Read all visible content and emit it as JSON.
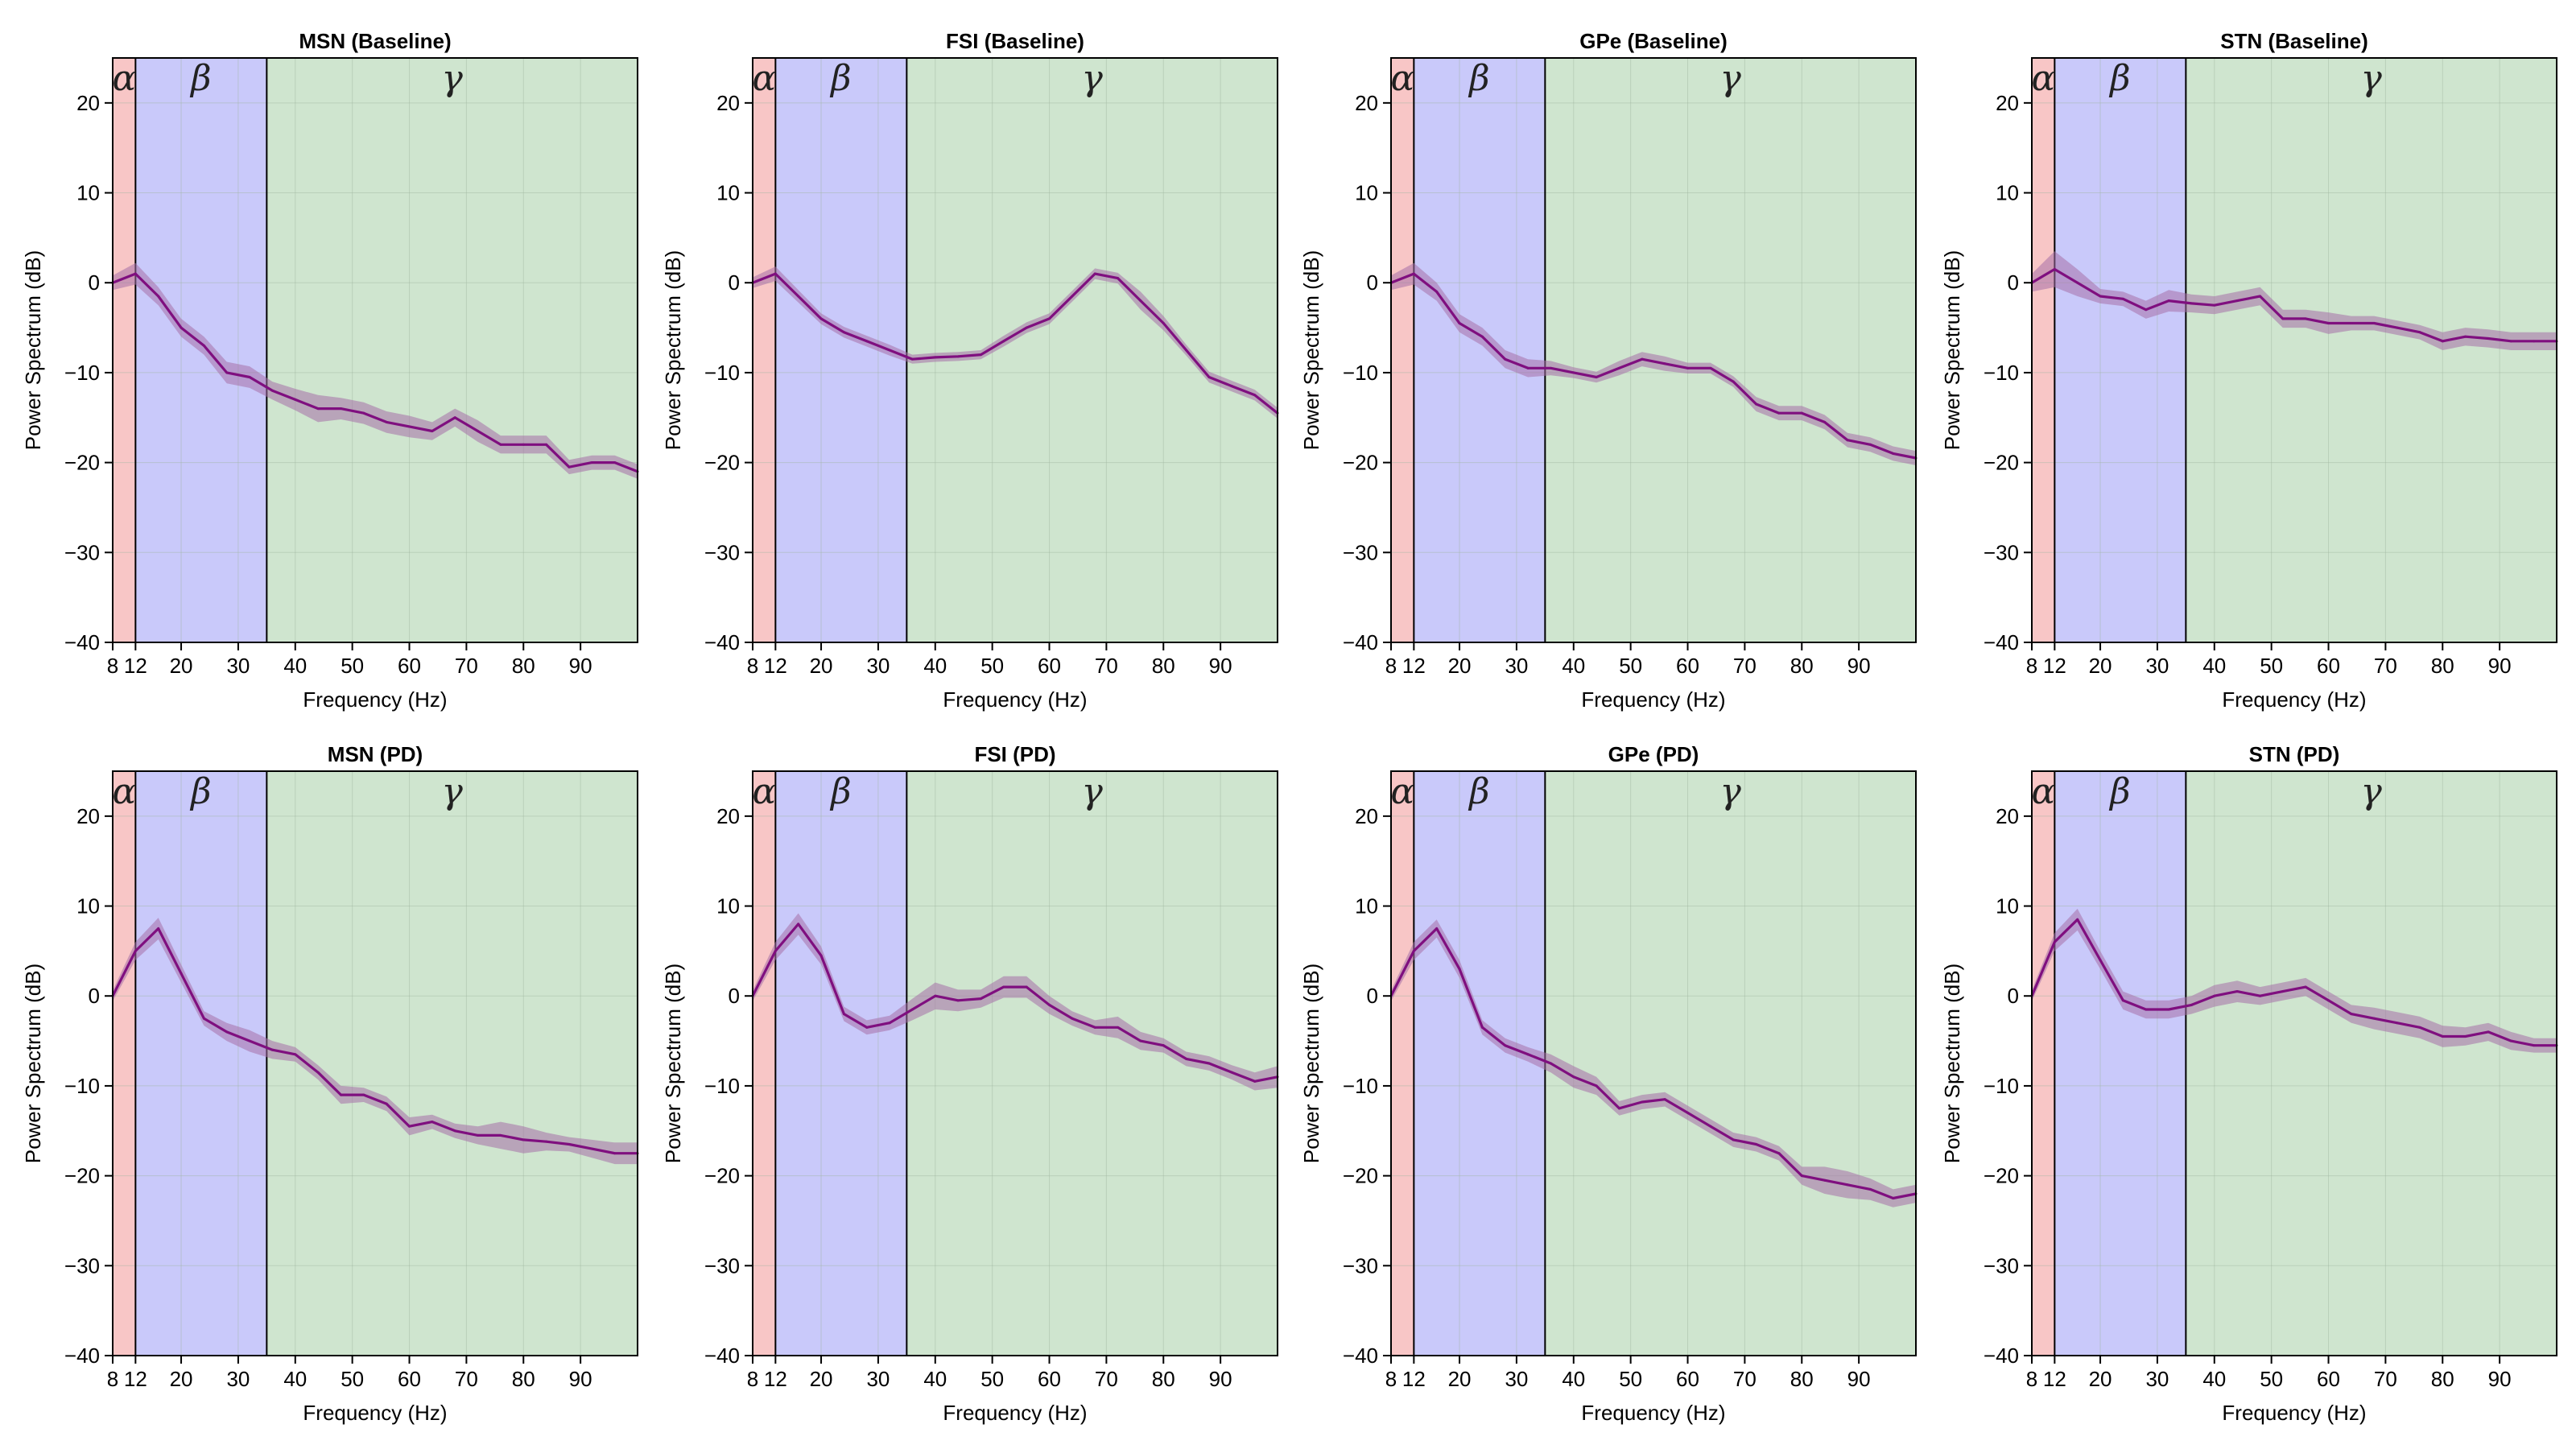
{
  "figure": {
    "xlabel": "Frequency (Hz)",
    "ylabel": "Power Spectrum (dB)",
    "band_labels": {
      "alpha": "α",
      "beta": "β",
      "gamma": "γ"
    },
    "colors": {
      "alpha_band": "#f8c6c6",
      "beta_band": "#c9c9fa",
      "gamma_band": "#cfe5cf",
      "line": "#7f0f7f",
      "ci": "#a56fa8",
      "grid": "#9fb59f",
      "axis": "#000000"
    }
  },
  "chart_data": [
    {
      "type": "line",
      "title": "MSN (Baseline)",
      "xlabel": "Frequency (Hz)",
      "ylabel": "Power Spectrum (dB)",
      "xlim": [
        8,
        100
      ],
      "ylim": [
        -40,
        25
      ],
      "xticks": [
        8,
        12,
        20,
        30,
        40,
        50,
        60,
        70,
        80,
        90
      ],
      "yticks": [
        -40,
        -30,
        -20,
        -10,
        0,
        10,
        20
      ],
      "bands": [
        {
          "name": "alpha",
          "from": 8,
          "to": 12
        },
        {
          "name": "beta",
          "from": 12,
          "to": 35
        },
        {
          "name": "gamma",
          "from": 35,
          "to": 100
        }
      ],
      "x": [
        8,
        12,
        16,
        20,
        24,
        28,
        32,
        36,
        40,
        44,
        48,
        52,
        56,
        60,
        64,
        68,
        72,
        76,
        80,
        84,
        88,
        92,
        96,
        100
      ],
      "values": [
        0,
        1,
        -1.5,
        -5,
        -7,
        -10,
        -10.5,
        -12,
        -13,
        -14,
        -14,
        -14.5,
        -15.5,
        -16,
        -16.5,
        -15,
        -16.5,
        -18,
        -18,
        -18,
        -20.5,
        -20,
        -20,
        -21
      ],
      "ci_halfwidth": [
        0.8,
        1.2,
        1.0,
        1.0,
        1.0,
        1.2,
        1.2,
        1.0,
        1.2,
        1.5,
        1.2,
        1.2,
        1.2,
        1.2,
        1.0,
        1.0,
        1.2,
        1.0,
        1.0,
        1.0,
        0.8,
        0.8,
        0.8,
        0.8
      ]
    },
    {
      "type": "line",
      "title": "FSI (Baseline)",
      "xlabel": "Frequency (Hz)",
      "ylabel": "Power Spectrum (dB)",
      "xlim": [
        8,
        100
      ],
      "ylim": [
        -40,
        25
      ],
      "xticks": [
        8,
        12,
        20,
        30,
        40,
        50,
        60,
        70,
        80,
        90
      ],
      "yticks": [
        -40,
        -30,
        -20,
        -10,
        0,
        10,
        20
      ],
      "bands": [
        {
          "name": "alpha",
          "from": 8,
          "to": 12
        },
        {
          "name": "beta",
          "from": 12,
          "to": 35
        },
        {
          "name": "gamma",
          "from": 35,
          "to": 100
        }
      ],
      "x": [
        8,
        12,
        16,
        20,
        24,
        28,
        32,
        36,
        40,
        44,
        48,
        52,
        56,
        60,
        64,
        68,
        72,
        76,
        80,
        84,
        88,
        92,
        96,
        100
      ],
      "values": [
        0,
        1,
        -1.5,
        -4,
        -5.5,
        -6.5,
        -7.5,
        -8.5,
        -8.3,
        -8.2,
        -8,
        -6.5,
        -5,
        -4,
        -1.5,
        1,
        0.5,
        -2,
        -4.5,
        -7.5,
        -10.5,
        -11.5,
        -12.5,
        -14.5
      ],
      "ci_halfwidth": [
        0.6,
        0.8,
        0.7,
        0.6,
        0.6,
        0.6,
        0.6,
        0.5,
        0.5,
        0.5,
        0.5,
        0.6,
        0.6,
        0.6,
        0.6,
        0.6,
        0.6,
        1.0,
        0.8,
        0.6,
        0.6,
        0.6,
        0.6,
        0.6
      ]
    },
    {
      "type": "line",
      "title": "GPe (Baseline)",
      "xlabel": "Frequency (Hz)",
      "ylabel": "Power Spectrum (dB)",
      "xlim": [
        8,
        100
      ],
      "ylim": [
        -40,
        25
      ],
      "xticks": [
        8,
        12,
        20,
        30,
        40,
        50,
        60,
        70,
        80,
        90
      ],
      "yticks": [
        -40,
        -30,
        -20,
        -10,
        0,
        10,
        20
      ],
      "bands": [
        {
          "name": "alpha",
          "from": 8,
          "to": 12
        },
        {
          "name": "beta",
          "from": 12,
          "to": 35
        },
        {
          "name": "gamma",
          "from": 35,
          "to": 100
        }
      ],
      "x": [
        8,
        12,
        16,
        20,
        24,
        28,
        32,
        36,
        40,
        44,
        48,
        52,
        56,
        60,
        64,
        68,
        72,
        76,
        80,
        84,
        88,
        92,
        96,
        100
      ],
      "values": [
        0,
        1,
        -1,
        -4.5,
        -6,
        -8.5,
        -9.5,
        -9.5,
        -10,
        -10.5,
        -9.5,
        -8.5,
        -9,
        -9.5,
        -9.5,
        -11,
        -13.5,
        -14.5,
        -14.5,
        -15.5,
        -17.5,
        -18,
        -19,
        -19.5
      ],
      "ci_halfwidth": [
        0.8,
        1.2,
        1.0,
        1.0,
        1.0,
        1.0,
        1.0,
        0.8,
        0.6,
        0.6,
        0.8,
        0.8,
        0.8,
        0.6,
        0.6,
        0.6,
        0.8,
        0.8,
        0.8,
        0.8,
        0.8,
        0.8,
        0.8,
        0.8
      ]
    },
    {
      "type": "line",
      "title": "STN (Baseline)",
      "xlabel": "Frequency (Hz)",
      "ylabel": "Power Spectrum (dB)",
      "xlim": [
        8,
        100
      ],
      "ylim": [
        -40,
        25
      ],
      "xticks": [
        8,
        12,
        20,
        30,
        40,
        50,
        60,
        70,
        80,
        90
      ],
      "yticks": [
        -40,
        -30,
        -20,
        -10,
        0,
        10,
        20
      ],
      "bands": [
        {
          "name": "alpha",
          "from": 8,
          "to": 12
        },
        {
          "name": "beta",
          "from": 12,
          "to": 35
        },
        {
          "name": "gamma",
          "from": 35,
          "to": 100
        }
      ],
      "x": [
        8,
        12,
        16,
        20,
        24,
        28,
        32,
        36,
        40,
        44,
        48,
        52,
        56,
        60,
        64,
        68,
        72,
        76,
        80,
        84,
        88,
        92,
        96,
        100
      ],
      "values": [
        0,
        1.5,
        0,
        -1.5,
        -1.8,
        -3,
        -2,
        -2.3,
        -2.5,
        -2,
        -1.5,
        -4,
        -4,
        -4.5,
        -4.5,
        -4.5,
        -5,
        -5.5,
        -6.5,
        -6,
        -6.2,
        -6.5,
        -6.5,
        -6.5
      ],
      "ci_halfwidth": [
        1.0,
        2.0,
        1.5,
        0.8,
        0.8,
        1.0,
        1.2,
        1.0,
        1.0,
        1.0,
        1.0,
        1.0,
        1.0,
        1.2,
        0.8,
        0.8,
        0.8,
        0.8,
        1.0,
        1.0,
        1.0,
        1.0,
        1.0,
        1.0
      ]
    },
    {
      "type": "line",
      "title": "MSN (PD)",
      "xlabel": "Frequency (Hz)",
      "ylabel": "Power Spectrum (dB)",
      "xlim": [
        8,
        100
      ],
      "ylim": [
        -40,
        25
      ],
      "xticks": [
        8,
        12,
        20,
        30,
        40,
        50,
        60,
        70,
        80,
        90
      ],
      "yticks": [
        -40,
        -30,
        -20,
        -10,
        0,
        10,
        20
      ],
      "bands": [
        {
          "name": "alpha",
          "from": 8,
          "to": 12
        },
        {
          "name": "beta",
          "from": 12,
          "to": 35
        },
        {
          "name": "gamma",
          "from": 35,
          "to": 100
        }
      ],
      "x": [
        8,
        12,
        16,
        20,
        24,
        28,
        32,
        36,
        40,
        44,
        48,
        52,
        56,
        60,
        64,
        68,
        72,
        76,
        80,
        84,
        88,
        92,
        96,
        100
      ],
      "values": [
        0,
        5,
        7.5,
        2.5,
        -2.5,
        -4,
        -5,
        -6,
        -6.5,
        -8.5,
        -11,
        -11,
        -12,
        -14.5,
        -14,
        -15,
        -15.5,
        -15.5,
        -16,
        -16.2,
        -16.5,
        -17,
        -17.5,
        -17.5
      ],
      "ci_halfwidth": [
        0.6,
        1.0,
        1.2,
        1.0,
        0.8,
        1.0,
        1.2,
        1.0,
        0.8,
        0.8,
        1.0,
        0.8,
        0.8,
        1.0,
        0.8,
        0.8,
        1.0,
        1.5,
        1.5,
        1.0,
        0.8,
        1.0,
        1.2,
        1.2
      ]
    },
    {
      "type": "line",
      "title": "FSI (PD)",
      "xlabel": "Frequency (Hz)",
      "ylabel": "Power Spectrum (dB)",
      "xlim": [
        8,
        100
      ],
      "ylim": [
        -40,
        25
      ],
      "xticks": [
        8,
        12,
        20,
        30,
        40,
        50,
        60,
        70,
        80,
        90
      ],
      "yticks": [
        -40,
        -30,
        -20,
        -10,
        0,
        10,
        20
      ],
      "bands": [
        {
          "name": "alpha",
          "from": 8,
          "to": 12
        },
        {
          "name": "beta",
          "from": 12,
          "to": 35
        },
        {
          "name": "gamma",
          "from": 35,
          "to": 100
        }
      ],
      "x": [
        8,
        12,
        16,
        20,
        24,
        28,
        32,
        36,
        40,
        44,
        48,
        52,
        56,
        60,
        64,
        68,
        72,
        76,
        80,
        84,
        88,
        92,
        96,
        100
      ],
      "values": [
        0,
        5,
        8,
        4.5,
        -2,
        -3.5,
        -3,
        -1.5,
        0,
        -0.5,
        -0.3,
        1,
        1,
        -1,
        -2.5,
        -3.5,
        -3.5,
        -5,
        -5.5,
        -7,
        -7.5,
        -8.5,
        -9.5,
        -9
      ],
      "ci_halfwidth": [
        0.6,
        1.0,
        1.2,
        1.0,
        0.8,
        0.8,
        0.8,
        1.2,
        1.5,
        1.2,
        1.0,
        1.2,
        1.2,
        1.0,
        0.8,
        0.8,
        1.2,
        1.0,
        0.8,
        0.8,
        0.8,
        0.8,
        1.0,
        1.2
      ]
    },
    {
      "type": "line",
      "title": "GPe (PD)",
      "xlabel": "Frequency (Hz)",
      "ylabel": "Power Spectrum (dB)",
      "xlim": [
        8,
        100
      ],
      "ylim": [
        -40,
        25
      ],
      "xticks": [
        8,
        12,
        20,
        30,
        40,
        50,
        60,
        70,
        80,
        90
      ],
      "yticks": [
        -40,
        -30,
        -20,
        -10,
        0,
        10,
        20
      ],
      "bands": [
        {
          "name": "alpha",
          "from": 8,
          "to": 12
        },
        {
          "name": "beta",
          "from": 12,
          "to": 35
        },
        {
          "name": "gamma",
          "from": 35,
          "to": 100
        }
      ],
      "x": [
        8,
        12,
        16,
        20,
        24,
        28,
        32,
        36,
        40,
        44,
        48,
        52,
        56,
        60,
        64,
        68,
        72,
        76,
        80,
        84,
        88,
        92,
        96,
        100
      ],
      "values": [
        0,
        5,
        7.5,
        3,
        -3.5,
        -5.5,
        -6.5,
        -7.5,
        -9,
        -10,
        -12.5,
        -11.8,
        -11.5,
        -13,
        -14.5,
        -16,
        -16.5,
        -17.5,
        -20,
        -20.5,
        -21,
        -21.5,
        -22.5,
        -22
      ],
      "ci_halfwidth": [
        0.6,
        1.0,
        1.0,
        1.0,
        0.8,
        0.8,
        0.8,
        1.0,
        1.2,
        1.0,
        0.8,
        0.8,
        0.8,
        0.8,
        0.8,
        0.8,
        0.8,
        0.8,
        1.0,
        1.5,
        1.5,
        1.2,
        1.0,
        1.0
      ]
    },
    {
      "type": "line",
      "title": "STN (PD)",
      "xlabel": "Frequency (Hz)",
      "ylabel": "Power Spectrum (dB)",
      "xlim": [
        8,
        100
      ],
      "ylim": [
        -40,
        25
      ],
      "xticks": [
        8,
        12,
        20,
        30,
        40,
        50,
        60,
        70,
        80,
        90
      ],
      "yticks": [
        -40,
        -30,
        -20,
        -10,
        0,
        10,
        20
      ],
      "bands": [
        {
          "name": "alpha",
          "from": 8,
          "to": 12
        },
        {
          "name": "beta",
          "from": 12,
          "to": 35
        },
        {
          "name": "gamma",
          "from": 35,
          "to": 100
        }
      ],
      "x": [
        8,
        12,
        16,
        20,
        24,
        28,
        32,
        36,
        40,
        44,
        48,
        52,
        56,
        60,
        64,
        68,
        72,
        76,
        80,
        84,
        88,
        92,
        96,
        100
      ],
      "values": [
        0,
        6,
        8.5,
        4,
        -0.5,
        -1.5,
        -1.5,
        -1,
        0,
        0.5,
        0,
        0.5,
        1,
        -0.5,
        -2,
        -2.5,
        -3,
        -3.5,
        -4.5,
        -4.5,
        -4,
        -5,
        -5.5,
        -5.5
      ],
      "ci_halfwidth": [
        0.6,
        1.0,
        1.2,
        1.0,
        1.0,
        1.0,
        1.0,
        1.0,
        1.2,
        1.2,
        1.0,
        1.0,
        1.0,
        1.0,
        1.0,
        1.2,
        1.2,
        1.2,
        1.2,
        1.0,
        1.0,
        1.0,
        0.8,
        0.8
      ]
    }
  ]
}
